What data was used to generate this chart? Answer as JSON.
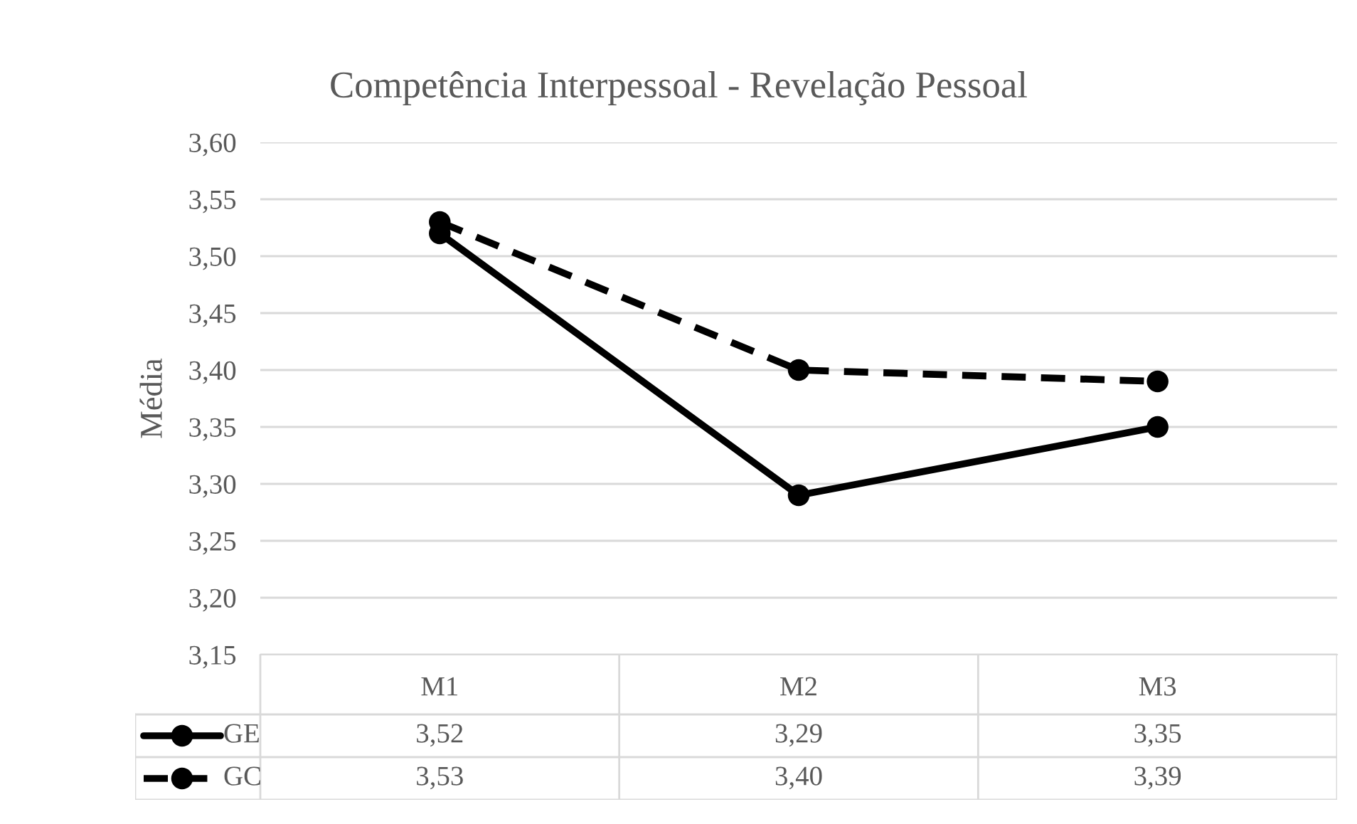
{
  "chart_data": {
    "type": "line",
    "title": "Competência Interpessoal - Revelação Pessoal",
    "ylabel": "Média",
    "categories": [
      "M1",
      "M2",
      "M3"
    ],
    "series": [
      {
        "name": "GE",
        "color": "#000000",
        "values": [
          3.52,
          3.29,
          3.35
        ],
        "line_style": "solid",
        "value_labels": [
          "3,52",
          "3,29",
          "3,35"
        ]
      },
      {
        "name": "GC",
        "color": "#000000",
        "values": [
          3.53,
          3.4,
          3.39
        ],
        "line_style": "dashed",
        "value_labels": [
          "3,53",
          "3,40",
          "3,39"
        ]
      }
    ],
    "marker": "circle",
    "ylim": [
      3.15,
      3.6
    ],
    "yticks": [
      {
        "value": 3.15,
        "label": "3,15"
      },
      {
        "value": 3.2,
        "label": "3,20"
      },
      {
        "value": 3.25,
        "label": "3,25"
      },
      {
        "value": 3.3,
        "label": "3,30"
      },
      {
        "value": 3.35,
        "label": "3,35"
      },
      {
        "value": 3.4,
        "label": "3,40"
      },
      {
        "value": 3.45,
        "label": "3,45"
      },
      {
        "value": 3.5,
        "label": "3,50"
      },
      {
        "value": 3.55,
        "label": "3,55"
      },
      {
        "value": 3.6,
        "label": "3,60"
      }
    ],
    "grid": "y",
    "legend": "bottom"
  }
}
